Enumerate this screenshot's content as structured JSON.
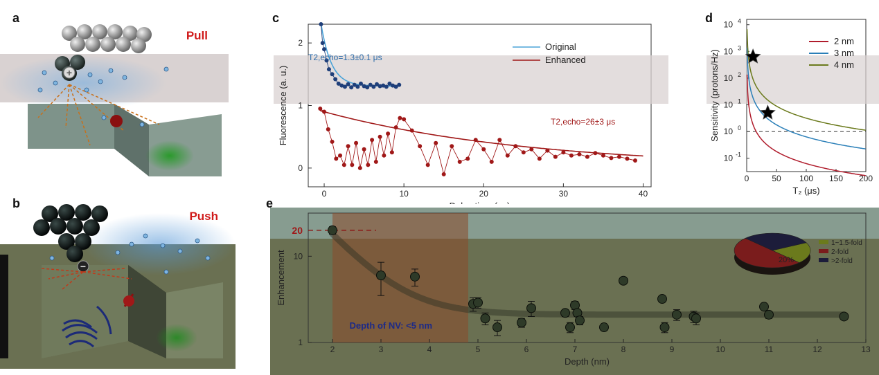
{
  "panels": {
    "a": "a",
    "b": "b",
    "c": "c",
    "d": "d",
    "e": "e"
  },
  "schematic_a": {
    "label": "Pull",
    "charge": "+"
  },
  "schematic_b": {
    "label": "Push",
    "charge": "−"
  },
  "colors": {
    "original": "#1f3f7a",
    "original_fit": "#4aa3d8",
    "enhanced": "#a01818",
    "enhanced_fit": "#a01818",
    "pull_push_label": "#d01a1a",
    "star_gray": "#9aa7b0",
    "star_orange": "#c0621a",
    "curve_2nm": "#b01c2c",
    "curve_3nm": "#2a7fb8",
    "curve_4nm": "#6b7a1c",
    "highlight_box": "#8a4a2a",
    "pie_1": "#6b7a1c",
    "pie_2": "#7a1c1c",
    "pie_3": "#1c1c3a"
  },
  "chart_data": [
    {
      "id": "c",
      "type": "scatter",
      "xlabel": "Delay time (μs)",
      "ylabel": "Fluorescence (a. u.)",
      "xlim": [
        -2,
        41
      ],
      "ylim": [
        -0.3,
        2.3
      ],
      "xticks": [
        0,
        10,
        20,
        30,
        40
      ],
      "yticks": [
        0,
        1,
        2
      ],
      "legend": [
        "Original",
        "Enhanced"
      ],
      "annotations": {
        "original": "T2,echo=1.3±0.1 μs",
        "enhanced": "T2,echo=26±3 μs"
      },
      "series": [
        {
          "name": "Original",
          "x": [
            -0.4,
            -0.2,
            0,
            0.3,
            0.6,
            1,
            1.4,
            1.8,
            2.2,
            2.6,
            3,
            3.4,
            3.8,
            4.2,
            4.6,
            5,
            5.4,
            5.8,
            6.2,
            6.6,
            7,
            7.4,
            7.8,
            8.2,
            8.6,
            9,
            9.4
          ],
          "y": [
            2.3,
            2.0,
            1.9,
            1.72,
            1.58,
            1.5,
            1.42,
            1.35,
            1.32,
            1.3,
            1.34,
            1.29,
            1.33,
            1.3,
            1.35,
            1.31,
            1.29,
            1.33,
            1.3,
            1.34,
            1.31,
            1.32,
            1.3,
            1.35,
            1.32,
            1.3,
            1.33
          ],
          "fit": {
            "amplitude": 1.0,
            "tau": 1.3,
            "offset": 1.31
          }
        },
        {
          "name": "Enhanced",
          "x": [
            -0.5,
            0,
            0.5,
            1,
            1.5,
            2,
            2.5,
            3,
            3.5,
            4,
            4.5,
            5,
            5.5,
            6,
            6.5,
            7,
            7.5,
            8,
            8.5,
            9,
            9.5,
            10,
            11,
            12,
            13,
            14,
            15,
            16,
            17,
            18,
            19,
            20,
            21,
            22,
            23,
            24,
            25,
            26,
            27,
            28,
            29,
            30,
            31,
            32,
            33,
            34,
            35,
            36,
            37,
            38,
            39
          ],
          "y": [
            0.95,
            0.9,
            0.62,
            0.42,
            0.15,
            0.2,
            0.05,
            0.35,
            0.05,
            0.4,
            0.0,
            0.3,
            0.05,
            0.45,
            0.1,
            0.5,
            0.2,
            0.55,
            0.25,
            0.65,
            0.8,
            0.78,
            0.6,
            0.35,
            0.05,
            0.4,
            -0.1,
            0.35,
            0.1,
            0.15,
            0.45,
            0.3,
            0.1,
            0.45,
            0.2,
            0.35,
            0.25,
            0.3,
            0.15,
            0.28,
            0.18,
            0.25,
            0.2,
            0.22,
            0.18,
            0.24,
            0.2,
            0.16,
            0.18,
            0.15,
            0.12
          ],
          "fit": {
            "amplitude": 0.9,
            "tau": 26,
            "offset": 0.0
          }
        }
      ]
    },
    {
      "id": "d",
      "type": "line",
      "xlabel": "T₂ (μs)",
      "ylabel": "Sensitivity (protons/Hz)",
      "xlim": [
        0,
        200
      ],
      "ylim_log10": [
        -1.5,
        4.2
      ],
      "xticks": [
        0,
        50,
        100,
        150,
        200
      ],
      "ytick_exponents": [
        -1,
        0,
        1,
        2,
        3,
        4
      ],
      "hline": 1,
      "legend": [
        "2 nm",
        "3 nm",
        "4 nm"
      ],
      "series": [
        {
          "name": "2 nm",
          "model": "c/T2^1.5",
          "log10_at_T2_1": 1.8
        },
        {
          "name": "3 nm",
          "model": "c/T2^1.5",
          "log10_at_T2_1": 2.8
        },
        {
          "name": "4 nm",
          "model": "c/T2^1.5",
          "log10_at_T2_1": 3.5
        }
      ],
      "markers": [
        {
          "shape": "star",
          "color": "gray",
          "x": 1.3,
          "y_log10": 2.8
        },
        {
          "shape": "star",
          "color": "orange",
          "x": 26,
          "y_log10": 0.7
        }
      ]
    },
    {
      "id": "e",
      "type": "scatter",
      "xlabel": "Depth (nm)",
      "ylabel": "Enhancement",
      "xlim": [
        1.5,
        13
      ],
      "ylim_log10": [
        0,
        1.5
      ],
      "xticks": [
        2,
        3,
        4,
        5,
        6,
        7,
        8,
        9,
        10,
        11,
        12,
        13
      ],
      "yticks": [
        1,
        10
      ],
      "highlight_label": "20",
      "highlight_value": 20,
      "region": {
        "from": 2,
        "to": 4.8,
        "label": "Depth of NV: <5 nm"
      },
      "points": [
        {
          "x": 2.0,
          "y": 20,
          "err": 2
        },
        {
          "x": 3.0,
          "y": 6.0,
          "err": 2.5
        },
        {
          "x": 3.7,
          "y": 5.8,
          "err": 1.3
        },
        {
          "x": 4.9,
          "y": 2.8,
          "err": 0.5
        },
        {
          "x": 5.0,
          "y": 2.9,
          "err": 0.4
        },
        {
          "x": 5.15,
          "y": 1.9,
          "err": 0.3
        },
        {
          "x": 5.4,
          "y": 1.5,
          "err": 0.3
        },
        {
          "x": 5.9,
          "y": 1.7,
          "err": 0.2
        },
        {
          "x": 6.1,
          "y": 2.5,
          "err": 0.5
        },
        {
          "x": 6.8,
          "y": 2.2,
          "err": 0.2
        },
        {
          "x": 6.9,
          "y": 1.5,
          "err": 0.2
        },
        {
          "x": 7.0,
          "y": 2.7,
          "err": 0.3
        },
        {
          "x": 7.05,
          "y": 2.2,
          "err": 0.2
        },
        {
          "x": 7.1,
          "y": 1.8,
          "err": 0.2
        },
        {
          "x": 7.6,
          "y": 1.5,
          "err": 0.1
        },
        {
          "x": 8.0,
          "y": 5.2,
          "err": 0.2
        },
        {
          "x": 8.8,
          "y": 3.2,
          "err": 0.2
        },
        {
          "x": 8.85,
          "y": 1.5,
          "err": 0.2
        },
        {
          "x": 9.1,
          "y": 2.1,
          "err": 0.3
        },
        {
          "x": 9.45,
          "y": 2.0,
          "err": 0.3
        },
        {
          "x": 9.5,
          "y": 1.9,
          "err": 0.3
        },
        {
          "x": 10.9,
          "y": 2.6,
          "err": 0.2
        },
        {
          "x": 11.0,
          "y": 2.1,
          "err": 0.2
        },
        {
          "x": 12.55,
          "y": 2.0,
          "err": 0.15
        }
      ],
      "trend": {
        "model": "1 + a*exp(-(d-2)/b)",
        "a": 19,
        "b": 0.7,
        "plateau": 2.1
      },
      "pie": {
        "labels": [
          "1~1.5-fold",
          "2-fold",
          ">2-fold"
        ],
        "values": [
          20,
          50,
          30
        ],
        "shown_label": "20%"
      }
    }
  ]
}
